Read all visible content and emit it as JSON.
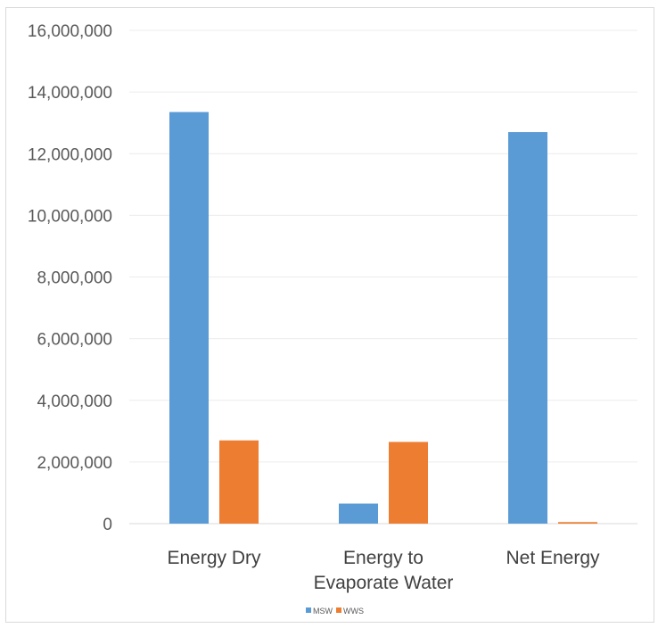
{
  "chart_data": {
    "type": "bar",
    "categories": [
      [
        "Energy Dry"
      ],
      [
        "Energy to",
        "Evaporate Water"
      ],
      [
        "Net Energy"
      ]
    ],
    "series": [
      {
        "name": "MSW",
        "color": "#5b9bd5",
        "values": [
          13350000,
          650000,
          12700000
        ]
      },
      {
        "name": "WWS",
        "color": "#ed7d31",
        "values": [
          2700000,
          2650000,
          50000
        ]
      }
    ],
    "ylim": [
      0,
      16000000
    ],
    "yticks": [
      0,
      2000000,
      4000000,
      6000000,
      8000000,
      10000000,
      12000000,
      14000000,
      16000000
    ],
    "ytick_labels": [
      "0",
      "2,000,000",
      "4,000,000",
      "6,000,000",
      "8,000,000",
      "10,000,000",
      "12,000,000",
      "14,000,000",
      "16,000,000"
    ],
    "grid": true,
    "legend_position": "bottom"
  }
}
